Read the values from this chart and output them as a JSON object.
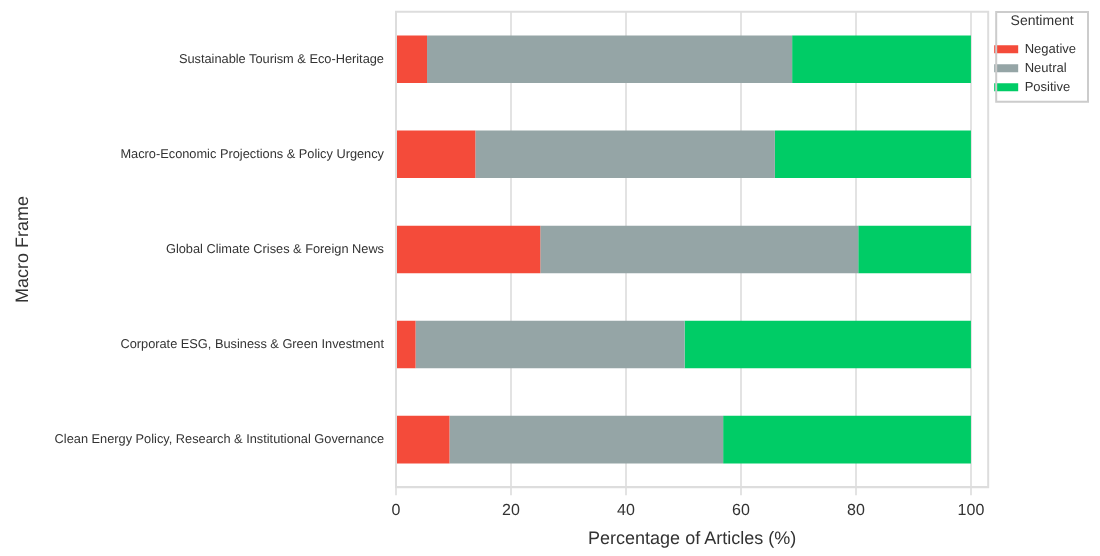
{
  "chart_data": {
    "type": "bar",
    "orientation": "horizontal",
    "stacked": true,
    "xlabel": "Percentage of Articles (%)",
    "ylabel": "Macro Frame",
    "legend_title": "Sentiment",
    "categories": [
      "Sustainable Tourism & Eco-Heritage",
      "Macro-Economic Projections & Policy Urgency",
      "Global Climate Crises & Foreign News",
      "Corporate ESG, Business & Green Investment",
      "Clean Energy Policy, Research & Institutional Governance"
    ],
    "series": [
      {
        "name": "Negative",
        "color": "#f44b3a",
        "values": [
          5.4,
          13.8,
          25.1,
          3.4,
          9.3
        ]
      },
      {
        "name": "Neutral",
        "color": "#95a5a6",
        "values": [
          63.5,
          52.1,
          55.3,
          46.8,
          47.6
        ]
      },
      {
        "name": "Positive",
        "color": "#00cc66",
        "values": [
          31.1,
          34.1,
          19.6,
          49.8,
          43.1
        ]
      }
    ],
    "xlim": [
      0,
      103
    ],
    "xticks": [
      0,
      20,
      40,
      60,
      80,
      100
    ],
    "grid": "x",
    "legend": "top right"
  }
}
